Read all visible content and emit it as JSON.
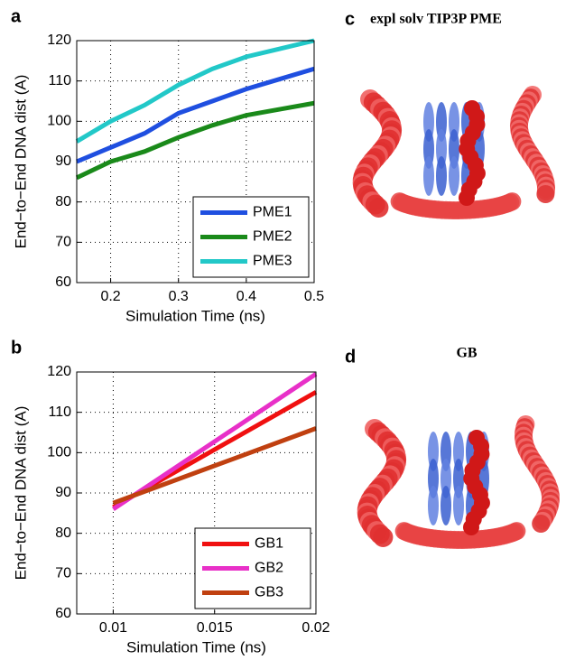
{
  "chart_data": [
    {
      "type": "line",
      "label": "a",
      "xlabel": "Simulation Time (ns)",
      "ylabel": "End−to−End DNA dist (A)",
      "x": [
        0.15,
        0.2,
        0.25,
        0.3,
        0.35,
        0.4,
        0.45,
        0.5
      ],
      "xlim": [
        0.15,
        0.5
      ],
      "xticks": [
        0.2,
        0.3,
        0.4,
        0.5
      ],
      "ylim": [
        60,
        120
      ],
      "yticks": [
        60,
        70,
        80,
        90,
        100,
        110,
        120
      ],
      "grid": true,
      "legend": "lower right",
      "series": [
        {
          "name": "PME1",
          "color": "#1f4fe0",
          "values": [
            90,
            93.5,
            97,
            102,
            105,
            108,
            110.5,
            113
          ]
        },
        {
          "name": "PME2",
          "color": "#1a8a1a",
          "values": [
            86,
            90,
            92.5,
            96,
            99,
            101.5,
            103,
            104.5
          ]
        },
        {
          "name": "PME3",
          "color": "#22c8c8",
          "values": [
            95,
            100,
            104,
            109,
            113,
            116,
            118,
            120
          ]
        }
      ]
    },
    {
      "type": "line",
      "label": "b",
      "xlabel": "Simulation Time (ns)",
      "ylabel": "End−to−End DNA dist (A)",
      "x": [
        0.01,
        0.02
      ],
      "xlim": [
        0.0082,
        0.02
      ],
      "xticks": [
        0.01,
        0.015,
        0.02
      ],
      "ylim": [
        60,
        120
      ],
      "yticks": [
        60,
        70,
        80,
        90,
        100,
        110,
        120
      ],
      "grid": true,
      "legend": "lower right",
      "series": [
        {
          "name": "GB1",
          "color": "#f01010",
          "values": [
            86.5,
            115
          ]
        },
        {
          "name": "GB2",
          "color": "#e830c8",
          "values": [
            86,
            119.5
          ]
        },
        {
          "name": "GB3",
          "color": "#c04010",
          "values": [
            87.5,
            106
          ]
        }
      ]
    }
  ],
  "panels": [
    {
      "label": "c",
      "title": "expl solv TIP3P PME"
    },
    {
      "label": "d",
      "title": "GB"
    }
  ]
}
